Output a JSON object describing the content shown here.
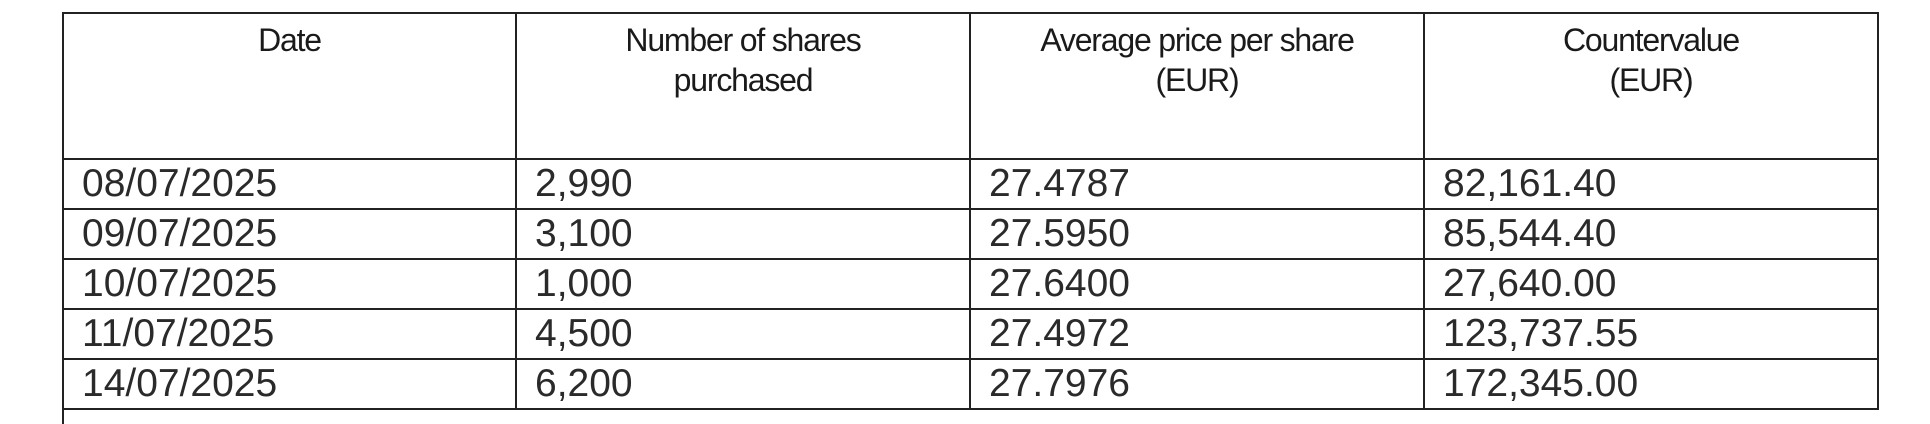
{
  "table": {
    "headers": [
      "Date",
      "Number of shares\npurchased",
      "Average price per share\n(EUR)",
      "Countervalue\n(EUR)"
    ],
    "rows": [
      [
        "08/07/2025",
        "2,990",
        "27.4787",
        "82,161.40"
      ],
      [
        "09/07/2025",
        "3,100",
        "27.5950",
        "85,544.40"
      ],
      [
        "10/07/2025",
        "1,000",
        "27.6400",
        "27,640.00"
      ],
      [
        "11/07/2025",
        "4,500",
        "27.4972",
        "123,737.55"
      ],
      [
        "14/07/2025",
        "6,200",
        "27.7976",
        "172,345.00"
      ]
    ]
  }
}
